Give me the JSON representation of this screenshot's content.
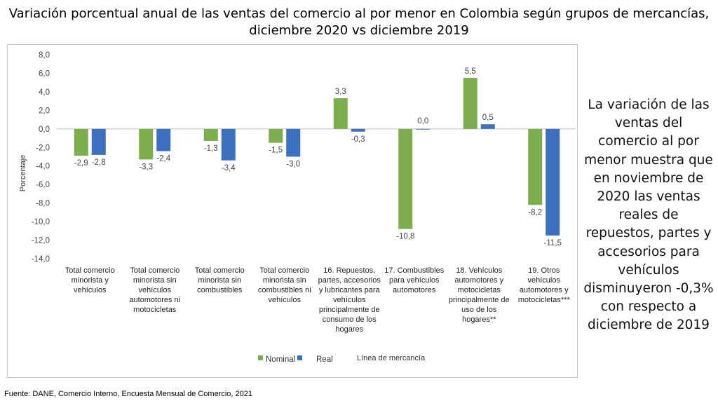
{
  "title_line1": "Variación porcentual anual de las ventas del comercio al por menor en Colombia según grupos de mercancías,",
  "title_line2": "diciembre 2020 vs diciembre 2019",
  "side_note": "La variación de las ventas del comercio al por menor muestra que en noviembre de 2020 las ventas reales de repuestos, partes y accesorios para vehículos disminuyeron -0,3% con respecto a diciembre de 2019",
  "source": "Fuente: DANE, Comercio Interno, Encuesta Mensual de Comercio, 2021",
  "colors": {
    "nominal": "#7cae4b",
    "real": "#3a70bf"
  },
  "chart_data": {
    "type": "bar",
    "ylabel": "Porcentaje",
    "xlabel": "Línea de mercancía",
    "ylim": [
      -14,
      8
    ],
    "yticks": [
      "8,0",
      "6,0",
      "4,0",
      "2,0",
      "0,0",
      "-2,0",
      "-4,0",
      "-6,0",
      "-8,0",
      "-10,0",
      "-12,0",
      "-14,0"
    ],
    "ytick_values": [
      8,
      6,
      4,
      2,
      0,
      -2,
      -4,
      -6,
      -8,
      -10,
      -12,
      -14
    ],
    "legend_position": "bottom",
    "categories": [
      [
        "Total comercio",
        "minorista y",
        "vehículos"
      ],
      [
        "Total comercio",
        "minorista sin",
        "vehículos",
        "automotores ni",
        "motocicletas"
      ],
      [
        "Total comercio",
        "minorista sin",
        "combustibles"
      ],
      [
        "Total comercio",
        "minorista sin",
        "combustibles ni",
        "vehículos"
      ],
      [
        "16. Repuestos,",
        "partes, accesorios",
        "y lubricantes para",
        "vehículos",
        "principalmente de",
        "consumo de los",
        "hogares"
      ],
      [
        "17. Combustibles",
        "para vehículos",
        "automotores"
      ],
      [
        "18. Vehículos",
        "automotores y",
        "motocicletas",
        "principalmente de",
        "uso de los",
        "hogares**"
      ],
      [
        "19. Otros",
        "vehículos",
        "automotores y",
        "motocicletas***"
      ]
    ],
    "series": [
      {
        "name": "Nominal",
        "values": [
          -2.9,
          -3.3,
          -1.3,
          -1.5,
          3.3,
          -10.8,
          5.5,
          -8.2
        ],
        "labels": [
          "-2,9",
          "-3,3",
          "-1,3",
          "-1,5",
          "3,3",
          "-10,8",
          "5,5",
          "-8,2"
        ]
      },
      {
        "name": "Real",
        "values": [
          -2.8,
          -2.4,
          -3.4,
          -3.0,
          -0.3,
          0.0,
          0.5,
          -11.5
        ],
        "labels": [
          "-2,8",
          "-2,4",
          "-3,4",
          "-3,0",
          "-0,3",
          "0,0",
          "0,5",
          "-11,5"
        ]
      }
    ]
  }
}
